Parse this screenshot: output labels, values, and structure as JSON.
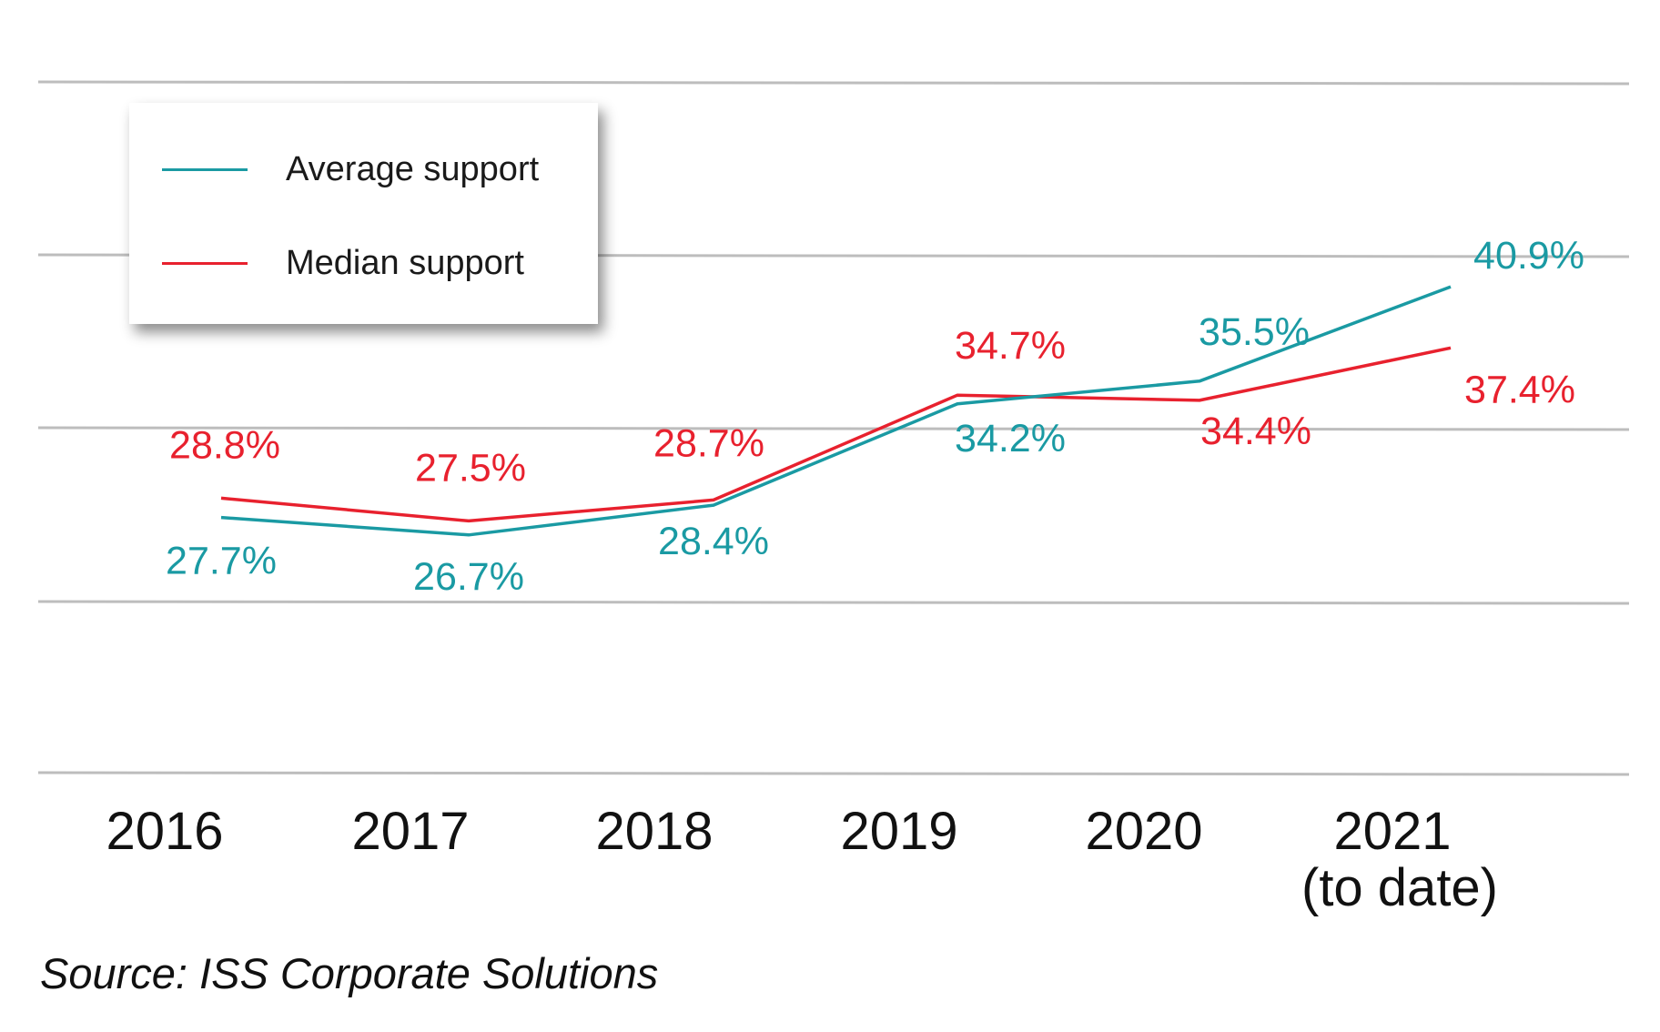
{
  "chart_data": {
    "type": "line",
    "categories": [
      "2016",
      "2017",
      "2018",
      "2019",
      "2020",
      "2021"
    ],
    "category_sublabels": [
      "",
      "",
      "",
      "",
      "",
      "(to date)"
    ],
    "series": [
      {
        "name": "Average support",
        "color": "#1a9aa3",
        "values": [
          27.7,
          26.7,
          28.4,
          34.2,
          35.5,
          40.9
        ],
        "labels": [
          "27.7%",
          "26.7%",
          "28.4%",
          "34.2%",
          "35.5%",
          "40.9%"
        ]
      },
      {
        "name": "Median support",
        "color": "#e8212e",
        "values": [
          28.8,
          27.5,
          28.7,
          34.7,
          34.4,
          37.4
        ],
        "labels": [
          "28.8%",
          "27.5%",
          "28.7%",
          "34.7%",
          "34.4%",
          "37.4%"
        ]
      }
    ],
    "grid": true,
    "legend": "top-left"
  },
  "source": "Source: ISS Corporate Solutions"
}
